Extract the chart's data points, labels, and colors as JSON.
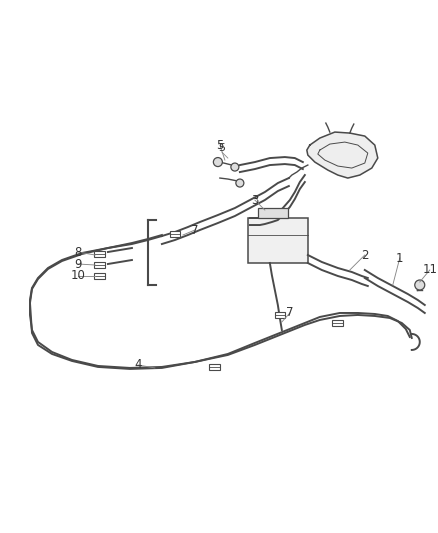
{
  "background_color": "#ffffff",
  "line_color": "#4a4a4a",
  "label_color": "#333333",
  "figsize": [
    4.38,
    5.33
  ],
  "dpi": 100,
  "line_width": 1.4,
  "thin_lw": 0.7
}
